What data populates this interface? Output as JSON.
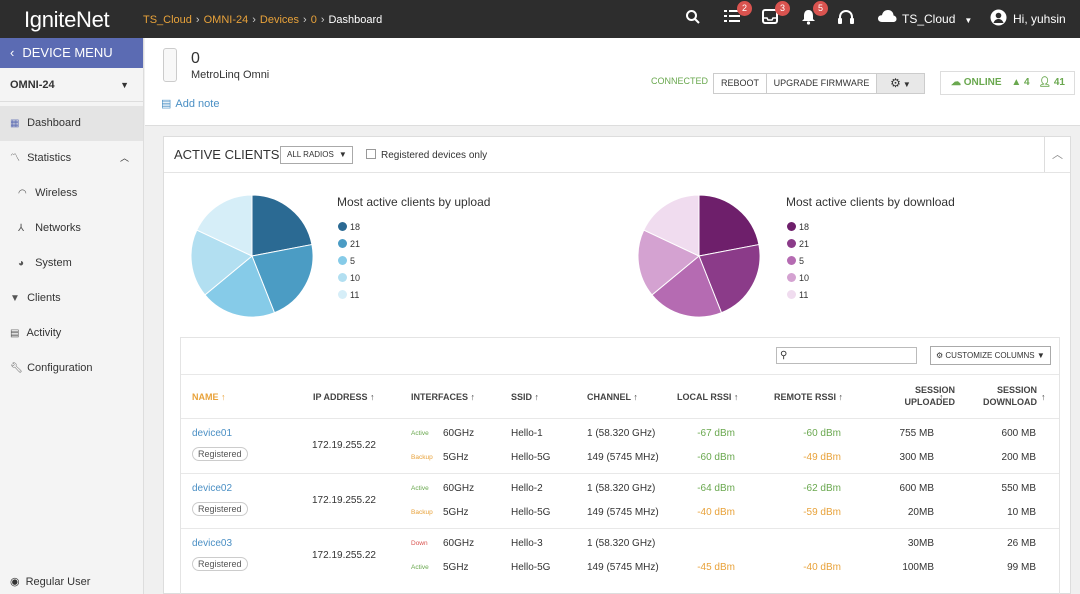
{
  "topbar": {
    "logo": "IgniteNet",
    "breadcrumb": [
      "TS_Cloud",
      "OMNI-24",
      "Devices",
      "0",
      "Dashboard"
    ],
    "badges": {
      "list": "2",
      "inbox": "3",
      "bell": "5"
    },
    "cloud_label": "TS_Cloud",
    "user_label": "Hi, yuhsin"
  },
  "sidebar": {
    "device_menu": "DEVICE MENU",
    "device": "OMNI-24",
    "items": [
      {
        "label": "Dashboard",
        "icon": "grid-icon"
      },
      {
        "label": "Statistics",
        "icon": "chart-icon"
      },
      {
        "label": "Wireless",
        "icon": "wifi-icon"
      },
      {
        "label": "Networks",
        "icon": "network-icon"
      },
      {
        "label": "System",
        "icon": "pie-icon"
      },
      {
        "label": "Clients",
        "icon": "filter-icon"
      },
      {
        "label": "Activity",
        "icon": "list-icon"
      },
      {
        "label": "Configuration",
        "icon": "wrench-icon"
      }
    ],
    "footer": "Regular User"
  },
  "device": {
    "name": "0",
    "model": "MetroLinq Omni",
    "add_note": "Add note",
    "status": "CONNECTED",
    "reboot": "REBOOT",
    "upgrade": "UPGRADE FIRMWARE",
    "online": "ONLINE",
    "warnings": "4",
    "users": "41"
  },
  "panel": {
    "title": "ACTIVE CLIENTS",
    "radios": "ALL RADIOS",
    "registered_only": "Registered devices only",
    "customize": "CUSTOMIZE COLUMNS"
  },
  "colors": {
    "upload": [
      "#2b6a93",
      "#4b9cc4",
      "#86cbe8",
      "#b2dff1",
      "#d6eef8"
    ],
    "download": [
      "#6e1f6b",
      "#8b3b89",
      "#b56bb2",
      "#d4a2d1",
      "#f0dcef"
    ]
  },
  "chart_data": [
    {
      "type": "pie",
      "title": "Most active clients by upload",
      "categories": [
        "18",
        "21",
        "5",
        "10",
        "11"
      ],
      "values": [
        22,
        22,
        20,
        18,
        18
      ]
    },
    {
      "type": "pie",
      "title": "Most active clients by download",
      "categories": [
        "18",
        "21",
        "5",
        "10",
        "11"
      ],
      "values": [
        22,
        22,
        20,
        18,
        18
      ]
    }
  ],
  "table": {
    "headers": [
      "NAME",
      "IP ADDRESS",
      "INTERFACES",
      "SSID",
      "CHANNEL",
      "LOCAL RSSI",
      "REMOTE RSSI",
      "SESSION UPLOADED",
      "SESSION DOWNLOAD"
    ],
    "rows": [
      {
        "name": "device01",
        "badge": "Registered",
        "ip": "172.19.255.22",
        "lines": [
          {
            "state": "Active",
            "iface": "60GHz",
            "ssid": "Hello-1",
            "channel": "1 (58.320 GHz)",
            "local": "-67 dBm",
            "remote": "-60 dBm",
            "up": "755 MB",
            "down": "600 MB"
          },
          {
            "state": "Backup",
            "iface": "5GHz",
            "ssid": "Hello-5G",
            "channel": "149 (5745 MHz)",
            "local": "-60 dBm",
            "remote": "-49 dBm",
            "up": "300 MB",
            "down": "200 MB"
          }
        ]
      },
      {
        "name": "device02",
        "badge": "Registered",
        "ip": "172.19.255.22",
        "lines": [
          {
            "state": "Active",
            "iface": "60GHz",
            "ssid": "Hello-2",
            "channel": "1 (58.320 GHz)",
            "local": "-64 dBm",
            "remote": "-62 dBm",
            "up": "600 MB",
            "down": "550 MB"
          },
          {
            "state": "Backup",
            "iface": "5GHz",
            "ssid": "Hello-5G",
            "channel": "149 (5745 MHz)",
            "local": "-40 dBm",
            "remote": "-59 dBm",
            "up": "20MB",
            "down": "10 MB"
          }
        ]
      },
      {
        "name": "device03",
        "badge": "Registered",
        "ip": "172.19.255.22",
        "lines": [
          {
            "state": "Down",
            "iface": "60GHz",
            "ssid": "Hello-3",
            "channel": "1 (58.320 GHz)",
            "local": "",
            "remote": "",
            "up": "30MB",
            "down": "26 MB"
          },
          {
            "state": "Active",
            "iface": "5GHz",
            "ssid": "Hello-5G",
            "channel": "149 (5745 MHz)",
            "local": "-45 dBm",
            "remote": "-40 dBm",
            "up": "100MB",
            "down": "99 MB"
          }
        ]
      }
    ]
  }
}
